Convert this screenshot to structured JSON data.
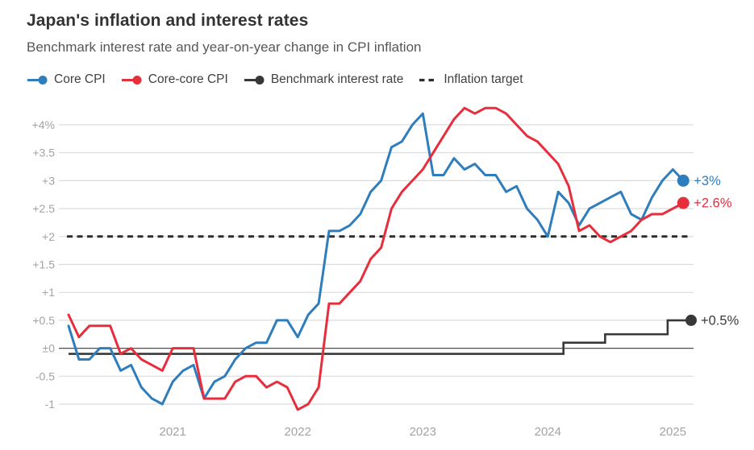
{
  "header": {
    "title": "Japan's inflation and interest rates",
    "subtitle": "Benchmark interest rate and year-on-year change in CPI inflation"
  },
  "legend": [
    {
      "label": "Core CPI",
      "color": "#2e7dbc",
      "marker": "line-dot"
    },
    {
      "label": "Core-core CPI",
      "color": "#e62e3d",
      "marker": "line-dot"
    },
    {
      "label": "Benchmark interest rate",
      "color": "#383838",
      "marker": "line-dot"
    },
    {
      "label": "Inflation target",
      "color": "#2d2d2d",
      "marker": "dashes"
    }
  ],
  "chart_data": {
    "type": "line",
    "x_start": "2020-03",
    "frequency": "monthly",
    "x_end": "2025-02",
    "ylim": [
      -1.25,
      4.35
    ],
    "grid": true,
    "yticks": [
      {
        "v": 4,
        "label": "+4%"
      },
      {
        "v": 3.5,
        "label": "+3.5"
      },
      {
        "v": 3,
        "label": "+3"
      },
      {
        "v": 2.5,
        "label": "+2.5"
      },
      {
        "v": 2,
        "label": "+2"
      },
      {
        "v": 1.5,
        "label": "+1.5"
      },
      {
        "v": 1,
        "label": "+1"
      },
      {
        "v": 0.5,
        "label": "+0.5"
      },
      {
        "v": 0,
        "label": "±0"
      },
      {
        "v": -0.5,
        "label": "-0.5"
      },
      {
        "v": -1,
        "label": "-1"
      }
    ],
    "xticks": [
      {
        "label": "2021",
        "month": "2021-01"
      },
      {
        "label": "2022",
        "month": "2022-01"
      },
      {
        "label": "2023",
        "month": "2023-01"
      },
      {
        "label": "2024",
        "month": "2024-01"
      },
      {
        "label": "2025",
        "month": "2025-01"
      }
    ],
    "target_line": {
      "name": "Inflation target",
      "value": 2,
      "color": "#2d2d2d",
      "style": "dashed"
    },
    "series": [
      {
        "name": "Core CPI",
        "color": "#2e7dbc",
        "end_label": "+3%",
        "values": [
          0.4,
          -0.2,
          -0.2,
          0.0,
          0.0,
          -0.4,
          -0.3,
          -0.7,
          -0.9,
          -1.0,
          -0.6,
          -0.4,
          -0.3,
          -0.9,
          -0.6,
          -0.5,
          -0.2,
          0.0,
          0.1,
          0.1,
          0.5,
          0.5,
          0.2,
          0.6,
          0.8,
          2.1,
          2.1,
          2.2,
          2.4,
          2.8,
          3.0,
          3.6,
          3.7,
          4.0,
          4.2,
          3.1,
          3.1,
          3.4,
          3.2,
          3.3,
          3.1,
          3.1,
          2.8,
          2.9,
          2.5,
          2.3,
          2.0,
          2.8,
          2.6,
          2.2,
          2.5,
          2.6,
          2.7,
          2.8,
          2.4,
          2.3,
          2.7,
          3.0,
          3.2,
          3.0
        ]
      },
      {
        "name": "Core-core CPI",
        "color": "#e62e3d",
        "end_label": "+2.6%",
        "values": [
          0.6,
          0.2,
          0.4,
          0.4,
          0.4,
          -0.1,
          0.0,
          -0.2,
          -0.3,
          -0.4,
          0.0,
          0.0,
          0.0,
          -0.9,
          -0.9,
          -0.9,
          -0.6,
          -0.5,
          -0.5,
          -0.7,
          -0.6,
          -0.7,
          -1.1,
          -1.0,
          -0.7,
          0.8,
          0.8,
          1.0,
          1.2,
          1.6,
          1.8,
          2.5,
          2.8,
          3.0,
          3.2,
          3.5,
          3.8,
          4.1,
          4.3,
          4.2,
          4.3,
          4.3,
          4.2,
          4.0,
          3.8,
          3.7,
          3.5,
          3.3,
          2.9,
          2.1,
          2.2,
          2.0,
          1.9,
          2.0,
          2.1,
          2.3,
          2.4,
          2.4,
          2.5,
          2.6
        ]
      }
    ],
    "benchmark": {
      "name": "Benchmark interest rate",
      "color": "#383838",
      "end_label": "+0.5%",
      "steps": [
        {
          "from": "2020-03",
          "rate": -0.1
        },
        {
          "from": "2024-03",
          "rate": 0.1
        },
        {
          "from": "2024-07",
          "rate": 0.25
        },
        {
          "from": "2025-01",
          "rate": 0.5
        }
      ]
    }
  }
}
